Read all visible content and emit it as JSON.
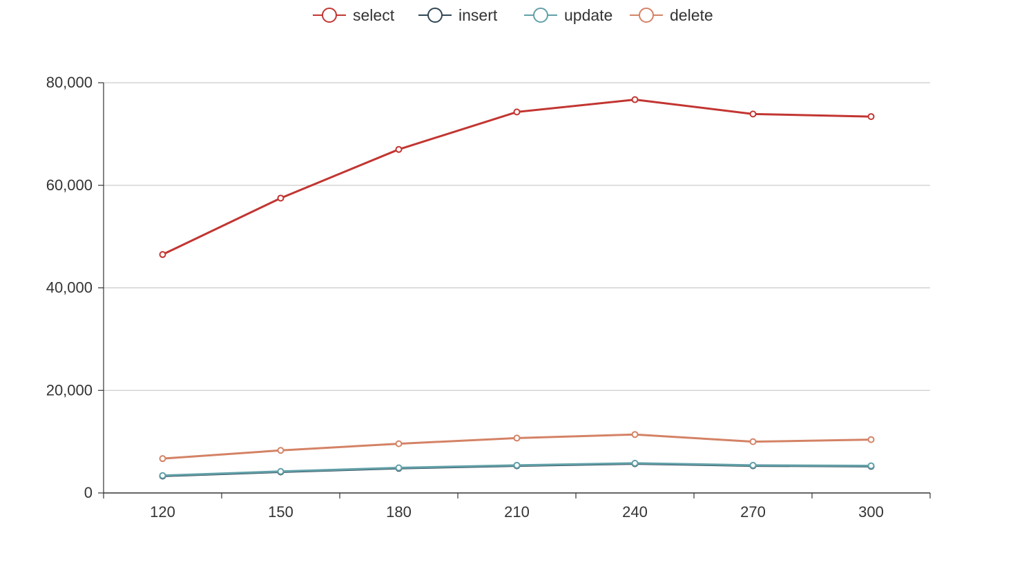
{
  "chart_data": {
    "type": "line",
    "title": "",
    "xlabel": "",
    "ylabel": "",
    "categories": [
      "120",
      "150",
      "180",
      "210",
      "240",
      "270",
      "300"
    ],
    "y_ticks": [
      "0",
      "20,000",
      "40,000",
      "60,000",
      "80,000"
    ],
    "ylim": [
      0,
      80000
    ],
    "grid": "horizontal",
    "legend_position": "top-center",
    "series": [
      {
        "name": "select",
        "color": "#c23531",
        "values": [
          46500,
          57500,
          67000,
          74300,
          76700,
          73900,
          73400
        ]
      },
      {
        "name": "insert",
        "color": "#2f4554",
        "values": [
          3300,
          4100,
          4800,
          5300,
          5700,
          5300,
          5200
        ]
      },
      {
        "name": "update",
        "color": "#61a0a8",
        "values": [
          3400,
          4200,
          4900,
          5400,
          5800,
          5400,
          5300
        ]
      },
      {
        "name": "delete",
        "color": "#d48265",
        "values": [
          6700,
          8300,
          9600,
          10700,
          11400,
          10000,
          10400
        ]
      }
    ]
  }
}
